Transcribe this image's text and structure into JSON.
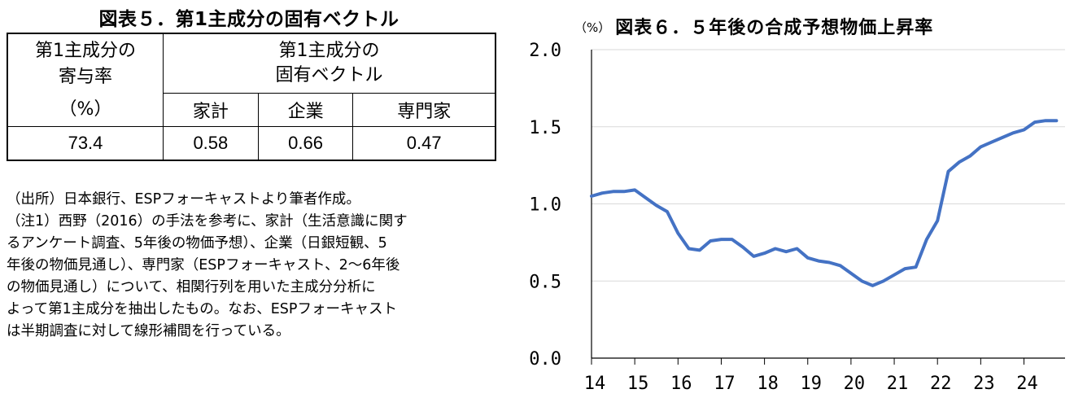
{
  "left_panel": {
    "title": "図表５．第1主成分の固有ベクトル",
    "table": {
      "contribution_header": [
        "第1主成分の",
        "寄与率",
        "（%）"
      ],
      "eigen_header": [
        "第1主成分の",
        "固有ベクトル"
      ],
      "columns": [
        "家計",
        "企業",
        "専門家"
      ],
      "row": [
        "73.4",
        "0.58",
        "0.66",
        "0.47"
      ]
    },
    "notes": [
      "（出所）日本銀行、ESPフォーキャストより筆者作成。",
      "（注1）西野（2016）の手法を参考に、家計（生活意識に関す",
      "るアンケート調査、5年後の物価予想）、企業（日銀短観、5",
      "年後の物価見通し）、専門家（ESPフォーキャスト、2～6年後",
      "の物価見通し）について、相関行列を用いた主成分分析に",
      "よって第1主成分を抽出したもの。なお、ESPフォーキャスト",
      "は半期調査に対して線形補間を行っている。"
    ]
  },
  "chart_data": {
    "type": "line",
    "title": "図表６．５年後の合成予想物価上昇率",
    "unit_label": "（%）",
    "ylim": [
      0,
      2
    ],
    "yticks": [
      "0.0",
      "0.5",
      "1.0",
      "1.5",
      "2.0"
    ],
    "xlim": [
      2014,
      2024.95
    ],
    "xticks": [
      "14",
      "15",
      "16",
      "17",
      "18",
      "19",
      "20",
      "21",
      "22",
      "23",
      "24"
    ],
    "grid": true,
    "line_color": "#4472C4",
    "series": [
      {
        "x": [
          2014.0,
          2014.25,
          2014.5,
          2014.75,
          2015.0,
          2015.25,
          2015.5,
          2015.75,
          2016.0,
          2016.25,
          2016.5,
          2016.75,
          2017.0,
          2017.25,
          2017.5,
          2017.75,
          2018.0,
          2018.25,
          2018.5,
          2018.75,
          2019.0,
          2019.25,
          2019.5,
          2019.75,
          2020.0,
          2020.25,
          2020.5,
          2020.75,
          2021.0,
          2021.25,
          2021.5,
          2021.75,
          2022.0,
          2022.25,
          2022.5,
          2022.75,
          2023.0,
          2023.25,
          2023.5,
          2023.75,
          2024.0,
          2024.25,
          2024.5,
          2024.75
        ],
        "y": [
          1.05,
          1.07,
          1.08,
          1.08,
          1.09,
          1.04,
          0.99,
          0.95,
          0.81,
          0.71,
          0.7,
          0.76,
          0.77,
          0.77,
          0.72,
          0.66,
          0.68,
          0.71,
          0.69,
          0.71,
          0.65,
          0.63,
          0.62,
          0.6,
          0.55,
          0.5,
          0.47,
          0.5,
          0.54,
          0.58,
          0.59,
          0.77,
          0.89,
          1.21,
          1.27,
          1.31,
          1.37,
          1.4,
          1.43,
          1.46,
          1.48,
          1.53,
          1.54,
          1.54
        ]
      }
    ]
  }
}
